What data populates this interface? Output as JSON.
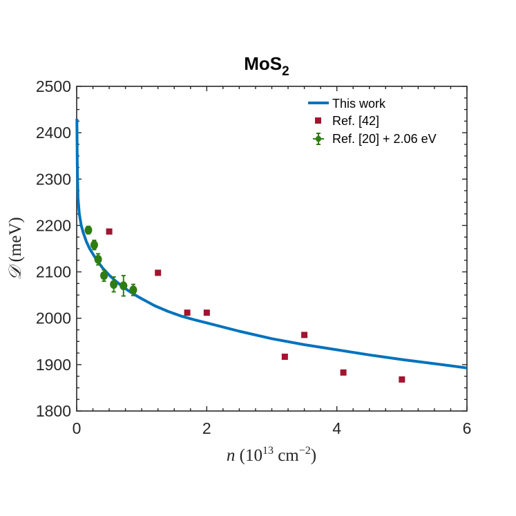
{
  "chart_data": {
    "type": "scatter",
    "title": "MoS",
    "title_subscript": "2",
    "xlabel": {
      "var": "n",
      "open": "(10",
      "sup": "13",
      "unit": " cm",
      "unit_sup": "−2",
      "close": ")"
    },
    "ylabel": {
      "var": "𝒟",
      "unit": "(meV)"
    },
    "xlim": [
      0,
      6
    ],
    "ylim": [
      1800,
      2500
    ],
    "xticks": [
      0,
      2,
      4,
      6
    ],
    "yticks": [
      1800,
      1900,
      2000,
      2100,
      2200,
      2300,
      2400,
      2500
    ],
    "grid": false,
    "legend_position": "top-right",
    "colors": {
      "this_work": "#0072bd",
      "ref42": "#a2142f",
      "ref20": "#2e7d12"
    },
    "series": [
      {
        "name": "This work",
        "kind": "line",
        "x": [
          0.003,
          0.01,
          0.02,
          0.04,
          0.07,
          0.1,
          0.15,
          0.2,
          0.3,
          0.4,
          0.5,
          0.6,
          0.7,
          0.8,
          0.9,
          1.0,
          1.2,
          1.4,
          1.6,
          1.8,
          2.0,
          2.5,
          3.0,
          3.5,
          4.0,
          4.5,
          5.0,
          5.5,
          6.0
        ],
        "y": [
          2430,
          2330,
          2260,
          2225,
          2200,
          2185,
          2165,
          2150,
          2127,
          2108,
          2093,
          2080,
          2069,
          2059,
          2050,
          2042,
          2027,
          2015,
          2005,
          1997,
          1990,
          1972,
          1956,
          1943,
          1932,
          1921,
          1911,
          1902,
          1893
        ]
      },
      {
        "name": "Ref. [42]",
        "kind": "markers",
        "x": [
          0.5,
          1.25,
          1.7,
          2.0,
          3.2,
          3.5,
          4.1,
          5.0
        ],
        "y": [
          2187,
          2098,
          2012,
          2012,
          1917,
          1964,
          1883,
          1868
        ]
      },
      {
        "name": "Ref. [20] + 2.06 eV",
        "kind": "errorbar",
        "x": [
          0.18,
          0.27,
          0.33,
          0.42,
          0.57,
          0.72,
          0.87
        ],
        "y": [
          2190,
          2158,
          2127,
          2092,
          2073,
          2070,
          2061
        ],
        "yerr": [
          8,
          10,
          12,
          12,
          16,
          22,
          12
        ],
        "xerr": [
          0.04,
          0.04,
          0.04,
          0.05,
          0.05,
          0.06,
          0.06
        ]
      }
    ]
  }
}
